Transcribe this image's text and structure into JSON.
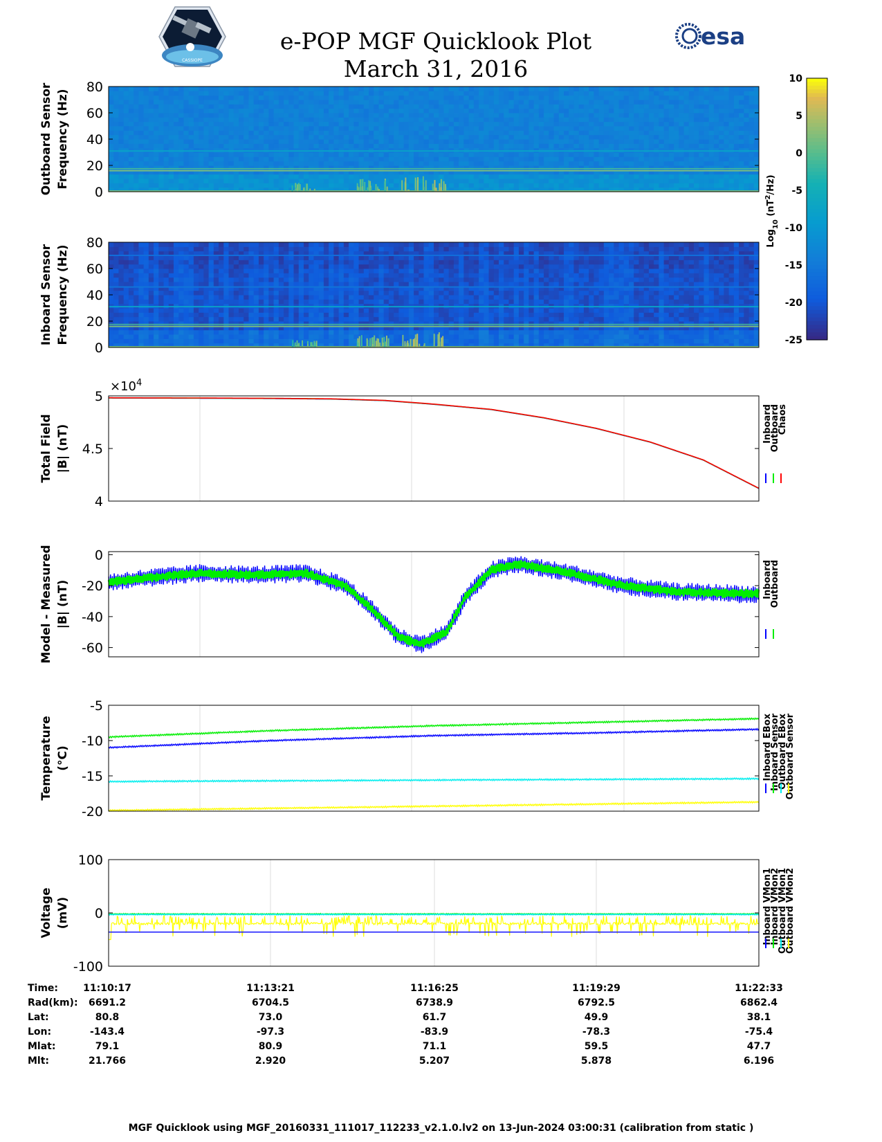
{
  "header": {
    "title_line1": "e-POP MGF Quicklook Plot",
    "title_line2": "March 31, 2016",
    "left_logo": "cassiope-swarm-logo",
    "right_logo_text": "esa"
  },
  "colors": {
    "inboard": "#0000ff",
    "outboard": "#00ee00",
    "chaos": "#ff0000",
    "inboard_vmon2": "#00eeee",
    "outboard_vmon2": "#ffff00",
    "colormap": "parula"
  },
  "colorbar": {
    "label": "Log10 (nT2/Hz)",
    "ticks": [
      "10",
      "5",
      "0",
      "-5",
      "-10",
      "-15",
      "-20",
      "-25"
    ],
    "range": [
      -25,
      10
    ]
  },
  "chart_data": [
    {
      "type": "heatmap",
      "ylabel": [
        "Outboard Sensor",
        "Frequency (Hz)"
      ],
      "yticks": [
        "80",
        "60",
        "40",
        "20",
        "0"
      ],
      "ylim": [
        0,
        80
      ],
      "xlim": [
        "11:10:17",
        "11:22:33"
      ],
      "background_level": -14,
      "lines": [
        {
          "freq_hz": 16,
          "level": 2,
          "note": "doubled line"
        },
        {
          "freq_hz": 31,
          "level": -8
        }
      ],
      "bursts": [
        {
          "x_frac": 0.28,
          "width": 0.04,
          "height_hz": 7,
          "level": 3
        },
        {
          "x_frac": 0.38,
          "width": 0.05,
          "height_hz": 10,
          "level": 4
        },
        {
          "x_frac": 0.45,
          "width": 0.07,
          "height_hz": 13,
          "level": 6
        }
      ]
    },
    {
      "type": "heatmap",
      "ylabel": [
        "Inboard Sensor",
        "Frequency (Hz)"
      ],
      "yticks": [
        "80",
        "60",
        "40",
        "20",
        "0"
      ],
      "ylim": [
        0,
        80
      ],
      "xlim": [
        "11:10:17",
        "11:22:33"
      ],
      "background_level": -21,
      "lines": [
        {
          "freq_hz": 16,
          "level": 2,
          "note": "doubled line"
        },
        {
          "freq_hz": 31,
          "level": -8
        },
        {
          "freq_hz": 46,
          "level": -16
        },
        {
          "freq_hz": 70,
          "level": -17
        }
      ],
      "bursts": [
        {
          "x_frac": 0.28,
          "width": 0.04,
          "height_hz": 6,
          "level": 3
        },
        {
          "x_frac": 0.38,
          "width": 0.05,
          "height_hz": 10,
          "level": 4
        },
        {
          "x_frac": 0.45,
          "width": 0.07,
          "height_hz": 12,
          "level": 6
        }
      ]
    },
    {
      "type": "line",
      "ylabel": [
        "Total Field",
        "|B| (nT)"
      ],
      "ylim": [
        40000,
        50000
      ],
      "yticks": [
        "5",
        "4.5",
        "4"
      ],
      "exponent_label": "×10",
      "exponent_power": "4",
      "x": [
        "11:10:17",
        "11:12:00",
        "11:13:21",
        "11:14:30",
        "11:15:30",
        "11:16:25",
        "11:17:30",
        "11:18:30",
        "11:19:29",
        "11:20:30",
        "11:21:30",
        "11:22:33"
      ],
      "series": [
        {
          "name": "Inboard",
          "values": [
            49800,
            49780,
            49750,
            49700,
            49550,
            49200,
            48700,
            47900,
            46900,
            45600,
            43900,
            41200
          ]
        },
        {
          "name": "Outboard",
          "values": [
            49810,
            49790,
            49760,
            49710,
            49560,
            49210,
            48710,
            47910,
            46910,
            45610,
            43910,
            41210
          ]
        },
        {
          "name": "Chaos",
          "values": [
            49820,
            49800,
            49770,
            49720,
            49570,
            49220,
            48720,
            47920,
            46920,
            45620,
            43920,
            41220
          ]
        }
      ],
      "legend": [
        "Inboard",
        "Outboard",
        "Chaos"
      ]
    },
    {
      "type": "line",
      "ylabel": [
        "Model - Measured",
        "|B| (nT)"
      ],
      "ylim": [
        -66,
        2
      ],
      "yticks": [
        "0",
        "-20",
        "-40",
        "-60"
      ],
      "x": [
        "11:10:17",
        "11:11:00",
        "11:12:00",
        "11:13:00",
        "11:14:00",
        "11:14:45",
        "11:15:20",
        "11:15:45",
        "11:16:10",
        "11:16:40",
        "11:17:00",
        "11:17:30",
        "11:18:00",
        "11:19:00",
        "11:20:00",
        "11:21:00",
        "11:22:00",
        "11:22:33"
      ],
      "series": [
        {
          "name": "Inboard",
          "values": [
            -18,
            -15,
            -12,
            -13,
            -12,
            -20,
            -38,
            -53,
            -58,
            -50,
            -28,
            -10,
            -6,
            -12,
            -20,
            -24,
            -25,
            -26
          ],
          "ripple": 6
        },
        {
          "name": "Outboard",
          "values": [
            -18,
            -15,
            -12,
            -13,
            -12,
            -20,
            -38,
            -53,
            -58,
            -50,
            -28,
            -10,
            -6,
            -12,
            -20,
            -24,
            -25,
            -25
          ],
          "ripple": 3
        }
      ],
      "legend": [
        "Inboard",
        "Outboard"
      ]
    },
    {
      "type": "line",
      "ylabel": [
        "Temperature",
        "(°C)"
      ],
      "ylim": [
        -20,
        -5
      ],
      "yticks": [
        "-5",
        "-10",
        "-15",
        "-20"
      ],
      "x": [
        "11:10:17",
        "11:13:21",
        "11:16:25",
        "11:19:29",
        "11:22:33"
      ],
      "series": [
        {
          "name": "Inboard EBox",
          "values": [
            -11.0,
            -10.0,
            -9.3,
            -8.9,
            -8.4
          ]
        },
        {
          "name": "Inboard Sensor",
          "values": [
            -9.5,
            -8.6,
            -7.9,
            -7.4,
            -6.9
          ]
        },
        {
          "name": "Outboard EBox",
          "values": [
            -15.8,
            -15.7,
            -15.6,
            -15.5,
            -15.4
          ]
        },
        {
          "name": "Outboard Sensor",
          "values": [
            -19.9,
            -19.6,
            -19.3,
            -19.0,
            -18.7
          ]
        }
      ],
      "legend": [
        "Inboard EBox",
        "Inboard Sensor",
        "Outboard EBox",
        "Outboard Sensor"
      ]
    },
    {
      "type": "line",
      "ylabel": [
        "Voltage",
        "(mV)"
      ],
      "ylim": [
        -100,
        100
      ],
      "yticks": [
        "100",
        "0",
        "-100"
      ],
      "x": [
        "11:10:17",
        "11:13:21",
        "11:16:25",
        "11:19:29",
        "11:22:33"
      ],
      "series": [
        {
          "name": "Inboard VMon1",
          "values": [
            -36,
            -36,
            -36,
            -36,
            -36
          ]
        },
        {
          "name": "Inboard VMon2",
          "values": [
            -2,
            -2,
            -2,
            -2,
            -2
          ]
        },
        {
          "name": "Outboard VMon1",
          "values": [
            -3,
            -3,
            -3,
            -3,
            -3
          ]
        },
        {
          "name": "Outboard VMon2",
          "values": [
            -20,
            -20,
            -20,
            -20,
            -20
          ]
        }
      ],
      "legend": [
        "Inboard VMon1",
        "Inboard VMon2",
        "Outboard VMon1",
        "Outboard VMon2"
      ]
    }
  ],
  "ephemeris": {
    "labels": [
      "Time:",
      "Rad(km):",
      "Lat:",
      "Lon:",
      "Mlat:",
      "Mlt:"
    ],
    "columns": [
      [
        "11:10:17",
        "6691.2",
        "80.8",
        "-143.4",
        "79.1",
        "21.766"
      ],
      [
        "11:13:21",
        "6704.5",
        "73.0",
        "-97.3",
        "80.9",
        "2.920"
      ],
      [
        "11:16:25",
        "6738.9",
        "61.7",
        "-83.9",
        "71.1",
        "5.207"
      ],
      [
        "11:19:29",
        "6792.5",
        "49.9",
        "-78.3",
        "59.5",
        "5.878"
      ],
      [
        "11:22:33",
        "6862.4",
        "38.1",
        "-75.4",
        "47.7",
        "6.196"
      ]
    ]
  },
  "footer": {
    "note": "MGF Quicklook using MGF_20160331_111017_112233_v2.1.0.lv2 on 13-Jun-2024 03:00:31 (calibration from static )"
  }
}
